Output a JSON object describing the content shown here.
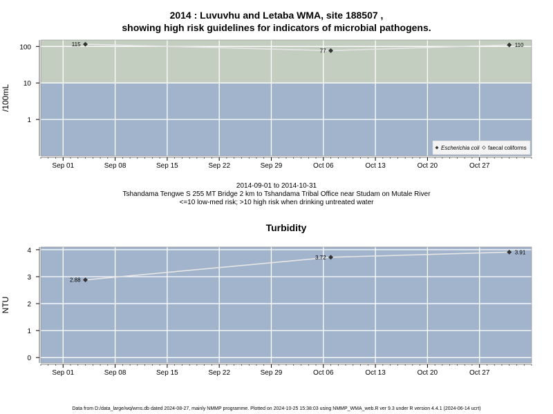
{
  "header": {
    "title_line1": "2014 : Luvuvhu and Letaba WMA, site 188507 ,",
    "title_line2": "showing high risk guidelines for indicators of microbial pathogens."
  },
  "caption": {
    "line1": "2014-09-01 to 2014-10-31",
    "line2": "Tshandama Tengwe S 255 MT Bridge 2 km to Tshandama Tribal Office near Studam on Mutale River",
    "line3": "<=10 low-med risk; >10 high risk when drinking untreated water"
  },
  "footer": {
    "text": "Data from D:/data_large/wq/wms.db dated 2024-08-27, mainly NMMP programme. Plotted on 2024-10-25 15:38:03 using NMMP_WMA_web.R ver 9.3 under R version 4.4.1 (2024-06-14 ucrt)"
  },
  "colors": {
    "low_risk_band": "#a2b4cb",
    "high_risk_band": "#c3cdc0",
    "grid": "#ffffff",
    "line": "#e6e6e6",
    "point": "#333333"
  },
  "chart_data": [
    {
      "type": "line",
      "title": "",
      "xlabel": "",
      "ylabel": "/100mL",
      "y_scale": "log",
      "ylim": [
        0.1,
        150
      ],
      "xlim": [
        "2014-08-29",
        "2014-11-03"
      ],
      "x_ticks": [
        "Sep 01",
        "Sep 08",
        "Sep 15",
        "Sep 22",
        "Sep 29",
        "Oct 06",
        "Oct 13",
        "Oct 20",
        "Oct 27"
      ],
      "y_ticks": [
        "1",
        "10",
        "100"
      ],
      "bands": [
        {
          "label": "<=10 low-med risk",
          "from": 0.1,
          "to": 10
        },
        {
          "label": ">10 high risk",
          "from": 10,
          "to": 150
        }
      ],
      "legend_position": "bottom-right",
      "series": [
        {
          "name": "Escherichia coli",
          "x": [
            "2014-09-04",
            "2014-10-07",
            "2014-10-31"
          ],
          "y": [
            115,
            77,
            110
          ],
          "labels": [
            "115",
            "77",
            "110"
          ]
        },
        {
          "name": "faecal coliforms",
          "x": [],
          "y": [],
          "labels": []
        }
      ],
      "grid": true
    },
    {
      "type": "line",
      "title": "Turbidity",
      "xlabel": "",
      "ylabel": "NTU",
      "ylim": [
        -0.2,
        4.1
      ],
      "xlim": [
        "2014-08-29",
        "2014-11-03"
      ],
      "x_ticks": [
        "Sep 01",
        "Sep 08",
        "Sep 15",
        "Sep 22",
        "Sep 29",
        "Oct 06",
        "Oct 13",
        "Oct 20",
        "Oct 27"
      ],
      "y_ticks": [
        "0",
        "1",
        "2",
        "3",
        "4"
      ],
      "series": [
        {
          "name": "",
          "x": [
            "2014-09-04",
            "2014-10-07",
            "2014-10-31"
          ],
          "y": [
            2.88,
            3.72,
            3.91
          ],
          "labels": [
            "2.88",
            "3.72",
            "3.91"
          ]
        }
      ],
      "grid": true
    }
  ]
}
